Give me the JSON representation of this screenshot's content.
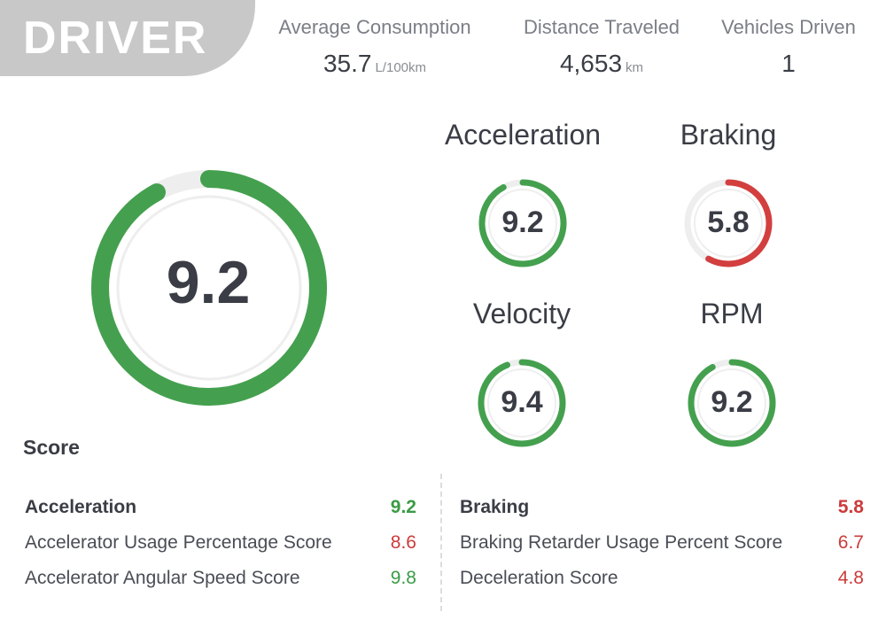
{
  "header": {
    "title": "DRIVER"
  },
  "stats": {
    "consumption": {
      "label": "Average Consumption",
      "value": "35.7",
      "unit": "L/100km"
    },
    "distance": {
      "label": "Distance Traveled",
      "value": "4,653",
      "unit": "km"
    },
    "vehicles": {
      "label": "Vehicles Driven",
      "value": "1"
    }
  },
  "overall": {
    "score": "9.2",
    "fraction": 0.92,
    "color": "#44a04e"
  },
  "gauges": {
    "acceleration": {
      "label": "Acceleration",
      "score": "9.2",
      "fraction": 0.92,
      "color": "#44a04e"
    },
    "braking": {
      "label": "Braking",
      "score": "5.8",
      "fraction": 0.58,
      "color": "#d33f3f"
    },
    "velocity": {
      "label": "Velocity",
      "score": "9.4",
      "fraction": 0.94,
      "color": "#44a04e"
    },
    "rpm": {
      "label": "RPM",
      "score": "9.2",
      "fraction": 0.92,
      "color": "#44a04e"
    }
  },
  "score_section": {
    "heading": "Score",
    "acceleration": {
      "title": "Acceleration",
      "title_value": "9.2",
      "items": [
        {
          "name": "Accelerator Usage Percentage Score",
          "value": "8.6"
        },
        {
          "name": "Accelerator Angular Speed Score",
          "value": "9.8"
        }
      ]
    },
    "braking": {
      "title": "Braking",
      "title_value": "5.8",
      "items": [
        {
          "name": "Braking Retarder Usage Percent Score",
          "value": "6.7"
        },
        {
          "name": "Deceleration Score",
          "value": "4.8"
        }
      ]
    }
  }
}
